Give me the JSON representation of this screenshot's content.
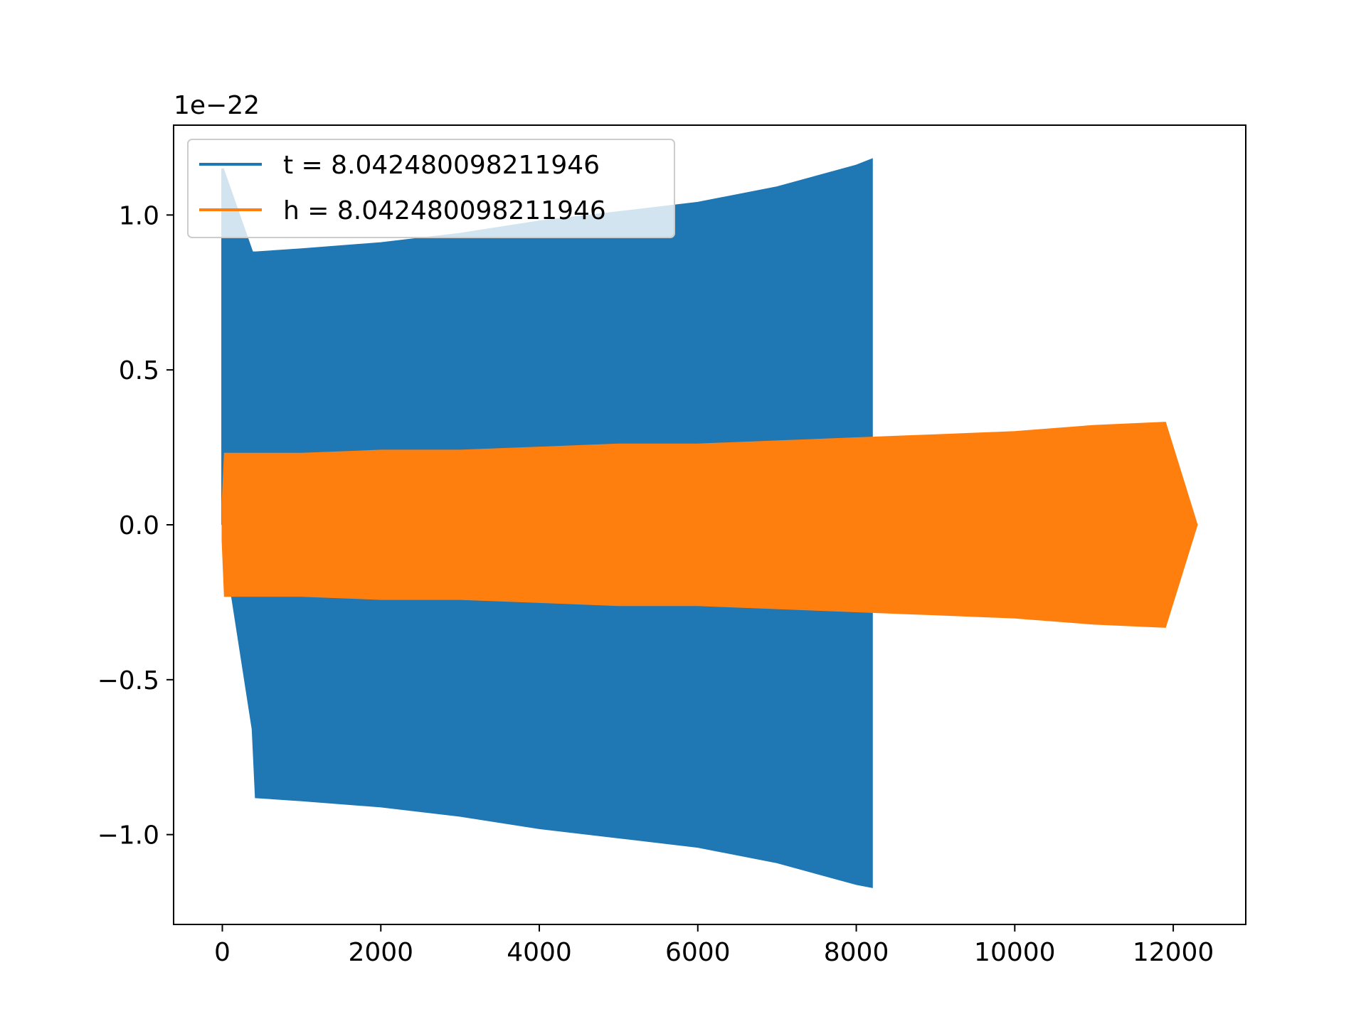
{
  "chart_data": {
    "type": "line",
    "title": "",
    "xlabel": "",
    "ylabel": "",
    "y_offset_text": "1e−22",
    "xlim": [
      -615,
      12915
    ],
    "ylim": [
      -1.29,
      1.29
    ],
    "x_ticks": [
      0,
      2000,
      4000,
      6000,
      8000,
      10000,
      12000
    ],
    "x_tick_labels": [
      "0",
      "2000",
      "4000",
      "6000",
      "8000",
      "10000",
      "12000"
    ],
    "y_ticks": [
      1.0,
      0.5,
      0.0,
      -0.5,
      -1.0
    ],
    "y_tick_labels": [
      "1.0",
      "0.5",
      "0.0",
      "−0.5",
      "−1.0"
    ],
    "grid": false,
    "legend_position": "upper-left",
    "series": [
      {
        "name": "t = 8.042480098211946",
        "color": "#1f77b4",
        "description_points": {
          "x": [
            0,
            10,
            380,
            420,
            1000,
            2000,
            3000,
            4000,
            5000,
            6000,
            7000,
            8000,
            8200
          ],
          "upper": [
            0.05,
            1.15,
            0.88,
            0.88,
            0.89,
            0.91,
            0.94,
            0.98,
            1.01,
            1.04,
            1.09,
            1.16,
            1.18
          ],
          "lower": [
            -0.05,
            -0.05,
            -0.66,
            -0.88,
            -0.89,
            -0.91,
            -0.94,
            -0.98,
            -1.01,
            -1.04,
            -1.09,
            -1.16,
            -1.17
          ]
        },
        "spike": {
          "x": 5,
          "y": 1.15
        }
      },
      {
        "name": "h = 8.042480098211946",
        "color": "#ff7f0e",
        "description_points": {
          "x": [
            0,
            30,
            1000,
            2000,
            3000,
            4000,
            5000,
            6000,
            7000,
            8000,
            9000,
            10000,
            11000,
            11900,
            12300
          ],
          "upper": [
            0.07,
            0.23,
            0.23,
            0.24,
            0.24,
            0.25,
            0.26,
            0.26,
            0.27,
            0.28,
            0.29,
            0.3,
            0.32,
            0.33,
            0.0
          ],
          "lower": [
            -0.05,
            -0.23,
            -0.23,
            -0.24,
            -0.24,
            -0.25,
            -0.26,
            -0.26,
            -0.27,
            -0.28,
            -0.29,
            -0.3,
            -0.32,
            -0.33,
            0.0
          ]
        },
        "tail": {
          "x_start": 11920,
          "x_end": 12300,
          "y": 0.0
        }
      }
    ]
  }
}
